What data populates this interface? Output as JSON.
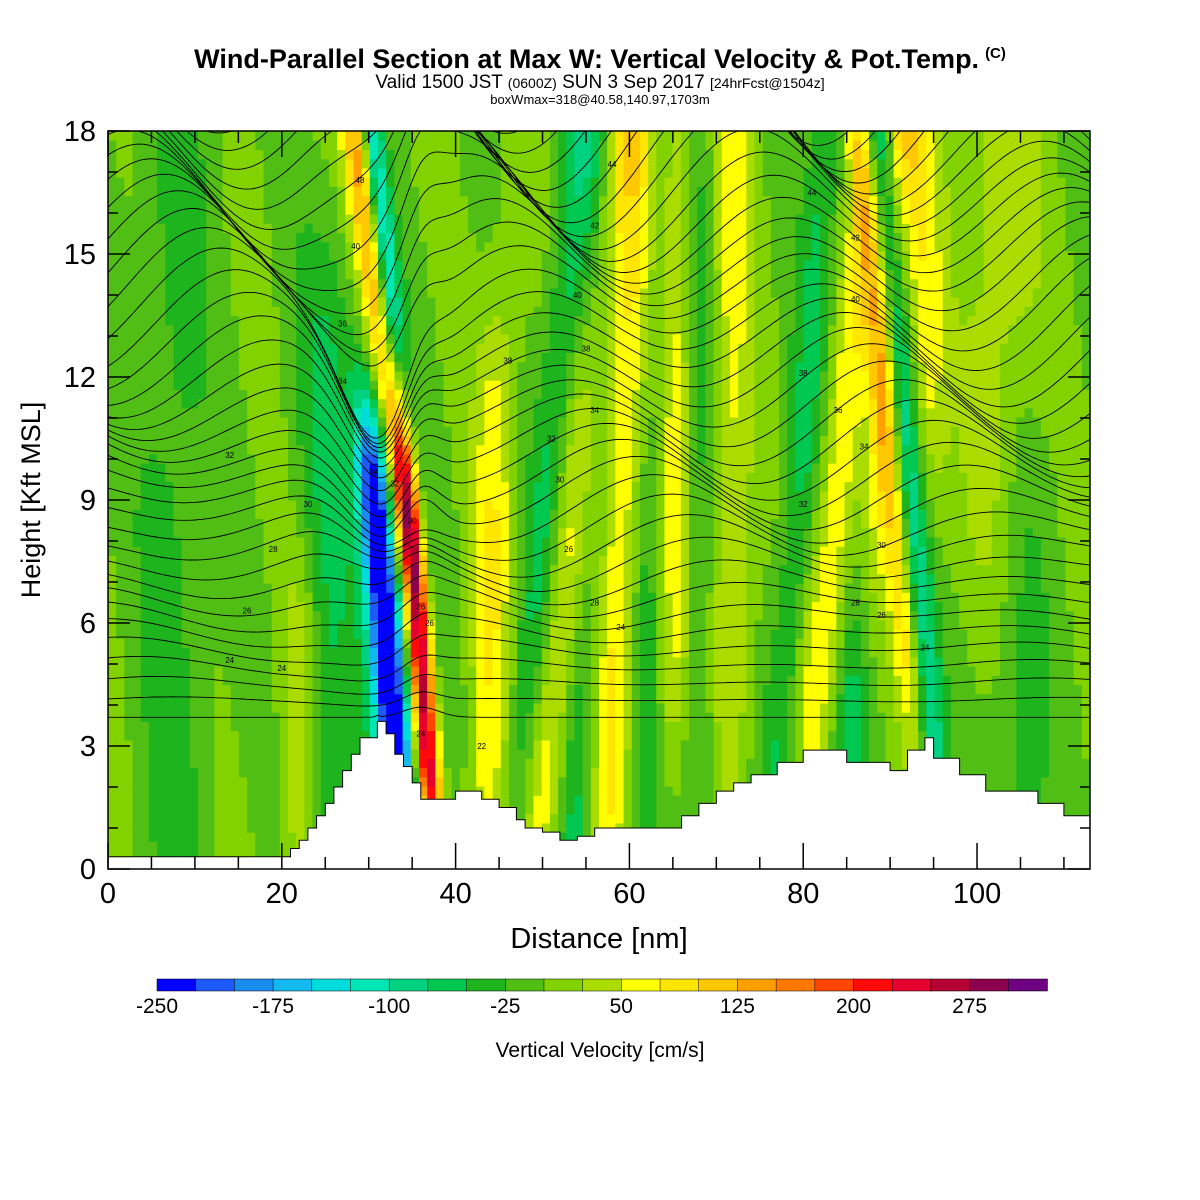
{
  "header": {
    "title": "Wind-Parallel Section at Max W: Vertical Velocity & Pot.Temp.",
    "copyright": "(C)",
    "valid_prefix": "Valid 1500 JST",
    "valid_utc": "(0600Z)",
    "valid_date": "SUN 3 Sep 2017",
    "forecast": "[24hrFcst@1504z]",
    "boxinfo": "boxWmax=318@40.58,140.97,1703m"
  },
  "colors": {
    "palette": [
      "#0000ff",
      "#1e5af8",
      "#1a8cf0",
      "#14b9f0",
      "#00dcdc",
      "#00e6b4",
      "#00d282",
      "#00c850",
      "#1eb41e",
      "#50be14",
      "#82d200",
      "#aadc00",
      "#ffff00",
      "#ffe600",
      "#ffc800",
      "#ffa000",
      "#ff7800",
      "#ff4600",
      "#ff0a0a",
      "#e6002d",
      "#b40032",
      "#8c0050",
      "#6e0082"
    ],
    "terrain": "#ffffff",
    "contour": "#000000"
  },
  "chart_data": {
    "type": "heatmap",
    "xlabel": "Distance [nm]",
    "ylabel": "Height [Kft MSL]",
    "xlim": [
      0,
      113
    ],
    "ylim": [
      0,
      18
    ],
    "xticks": [
      0,
      20,
      40,
      60,
      80,
      100
    ],
    "yticks": [
      0,
      3,
      6,
      9,
      12,
      15,
      18
    ],
    "colorbar": {
      "label": "Vertical Velocity [cm/s]",
      "min": -250,
      "max": 325,
      "step": 25,
      "labels": [
        -250,
        -175,
        -100,
        -25,
        50,
        125,
        200,
        275
      ]
    },
    "terrain_profile": {
      "x": [
        0,
        20,
        21,
        22,
        23,
        24,
        25,
        26,
        27,
        28,
        29,
        31,
        32,
        33,
        34,
        35,
        36,
        38,
        40,
        43,
        45,
        47,
        48,
        50,
        52,
        54,
        56,
        59,
        62,
        66,
        68,
        70,
        72,
        74,
        77,
        80,
        81,
        83,
        85,
        87,
        89,
        90,
        92,
        94,
        95,
        98,
        101,
        104,
        107,
        110,
        113
      ],
      "z": [
        0.3,
        0.3,
        0.5,
        0.7,
        1.0,
        1.3,
        1.6,
        2.0,
        2.4,
        2.8,
        3.2,
        3.6,
        3.3,
        2.8,
        2.5,
        2.1,
        1.7,
        1.7,
        1.9,
        1.7,
        1.5,
        1.2,
        1.0,
        0.9,
        0.7,
        0.8,
        1.0,
        1.0,
        1.0,
        1.3,
        1.6,
        1.9,
        2.1,
        2.3,
        2.6,
        2.9,
        2.9,
        2.9,
        2.6,
        2.6,
        2.6,
        2.4,
        2.9,
        3.2,
        2.7,
        2.3,
        1.9,
        1.9,
        1.6,
        1.3,
        1.3
      ]
    },
    "isentrope_labels": [
      {
        "x": 14,
        "z": 5.1,
        "text": "24"
      },
      {
        "x": 20,
        "z": 4.9,
        "text": "24"
      },
      {
        "x": 16,
        "z": 6.3,
        "text": "26"
      },
      {
        "x": 19,
        "z": 7.8,
        "text": "28"
      },
      {
        "x": 23,
        "z": 8.9,
        "text": "30"
      },
      {
        "x": 14,
        "z": 10.1,
        "text": "32"
      },
      {
        "x": 27,
        "z": 11.9,
        "text": "34"
      },
      {
        "x": 27,
        "z": 13.3,
        "text": "36"
      },
      {
        "x": 28.5,
        "z": 15.2,
        "text": "40"
      },
      {
        "x": 29,
        "z": 16.8,
        "text": "48"
      },
      {
        "x": 30.5,
        "z": 9.7,
        "text": "34"
      },
      {
        "x": 33,
        "z": 9.4,
        "text": "32"
      },
      {
        "x": 35,
        "z": 8.5,
        "text": "30"
      },
      {
        "x": 36,
        "z": 6.4,
        "text": "26"
      },
      {
        "x": 37,
        "z": 6.0,
        "text": "26"
      },
      {
        "x": 36,
        "z": 3.3,
        "text": "24"
      },
      {
        "x": 43,
        "z": 3.0,
        "text": "22"
      },
      {
        "x": 46,
        "z": 12.4,
        "text": "38"
      },
      {
        "x": 51,
        "z": 10.5,
        "text": "32"
      },
      {
        "x": 52,
        "z": 9.5,
        "text": "30"
      },
      {
        "x": 53,
        "z": 7.8,
        "text": "26"
      },
      {
        "x": 56,
        "z": 6.5,
        "text": "28"
      },
      {
        "x": 59,
        "z": 5.9,
        "text": "24"
      },
      {
        "x": 56,
        "z": 11.2,
        "text": "34"
      },
      {
        "x": 55,
        "z": 12.7,
        "text": "38"
      },
      {
        "x": 54,
        "z": 14.0,
        "text": "40"
      },
      {
        "x": 56,
        "z": 15.7,
        "text": "42"
      },
      {
        "x": 58,
        "z": 17.2,
        "text": "44"
      },
      {
        "x": 81,
        "z": 16.5,
        "text": "44"
      },
      {
        "x": 86,
        "z": 15.4,
        "text": "42"
      },
      {
        "x": 86,
        "z": 13.9,
        "text": "40"
      },
      {
        "x": 80,
        "z": 12.1,
        "text": "38"
      },
      {
        "x": 84,
        "z": 11.2,
        "text": "36"
      },
      {
        "x": 87,
        "z": 10.3,
        "text": "34"
      },
      {
        "x": 80,
        "z": 8.9,
        "text": "32"
      },
      {
        "x": 89,
        "z": 7.9,
        "text": "30"
      },
      {
        "x": 86,
        "z": 6.5,
        "text": "28"
      },
      {
        "x": 89,
        "z": 6.2,
        "text": "26"
      },
      {
        "x": 94,
        "z": 5.4,
        "text": "24"
      }
    ]
  }
}
